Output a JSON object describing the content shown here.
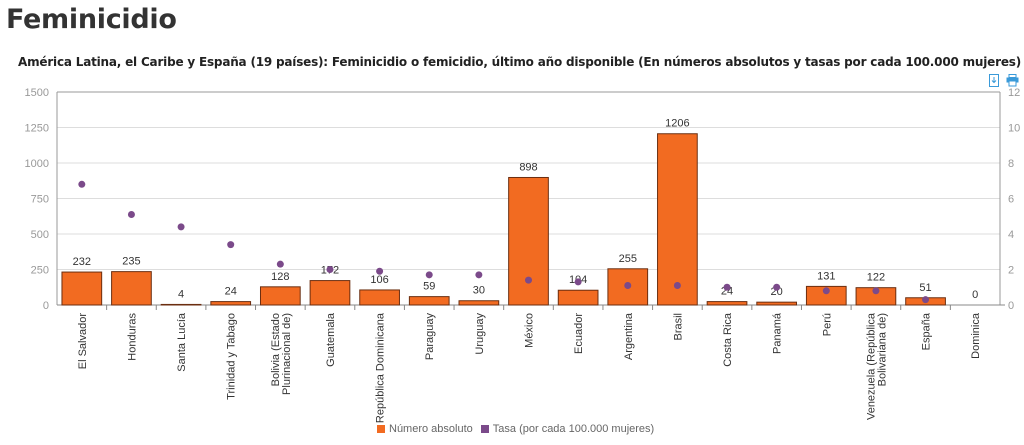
{
  "page": {
    "title": "Feminicidio"
  },
  "toolbar": {
    "icons": [
      "download-icon",
      "print-icon"
    ]
  },
  "chart_data": {
    "type": "bar",
    "title": "América Latina, el Caribe y España (19 países): Feminicidio o femicidio, último año disponible (En números absolutos y tasas por cada 100.000 mujeres)",
    "xlabel": "",
    "ylabel": "",
    "ylim": [
      0,
      1500
    ],
    "y2lim": [
      0,
      12
    ],
    "yticks": [
      "0",
      "250",
      "500",
      "750",
      "1000",
      "1250",
      "1500"
    ],
    "y2ticks": [
      "0",
      "2",
      "4",
      "6",
      "8",
      "10",
      "12"
    ],
    "grid": true,
    "legend_position": "bottom-center",
    "categories": [
      [
        "El Salvador"
      ],
      [
        "Honduras"
      ],
      [
        "Santa Lucía"
      ],
      [
        "Trinidad y Tabago"
      ],
      [
        "Bolivia (Estado",
        "Plurinacional de)"
      ],
      [
        "Guatemala"
      ],
      [
        "República Dominicana"
      ],
      [
        "Paraguay"
      ],
      [
        "Uruguay"
      ],
      [
        "México"
      ],
      [
        "Ecuador"
      ],
      [
        "Argentina"
      ],
      [
        "Brasil"
      ],
      [
        "Costa Rica"
      ],
      [
        "Panamá"
      ],
      [
        "Perú"
      ],
      [
        "Venezuela (República",
        "Bolivariana de)"
      ],
      [
        "España"
      ],
      [
        "Dominica"
      ]
    ],
    "series": [
      {
        "name": "Número absoluto",
        "type": "bar",
        "axis": "left",
        "color": "#f26b21",
        "values": [
          232,
          235,
          4,
          24,
          128,
          172,
          106,
          59,
          30,
          898,
          104,
          255,
          1206,
          24,
          20,
          131,
          122,
          51,
          0
        ]
      },
      {
        "name": "Tasa (por cada 100.000 mujeres)",
        "type": "scatter",
        "axis": "right",
        "color": "#7b4a8a",
        "values": [
          6.8,
          5.1,
          4.4,
          3.4,
          2.3,
          2.0,
          1.9,
          1.7,
          1.7,
          1.4,
          1.3,
          1.1,
          1.1,
          1.0,
          1.0,
          0.8,
          0.8,
          0.3,
          null
        ]
      }
    ]
  }
}
